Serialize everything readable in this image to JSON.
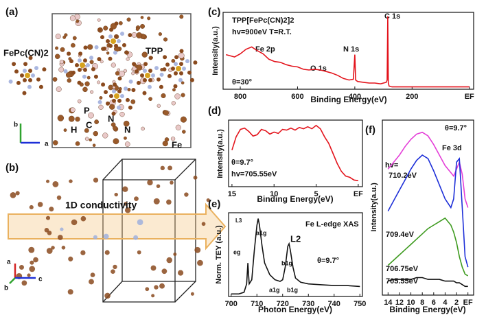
{
  "structures": {
    "a": {
      "label": "(a)",
      "texts": [
        "FePc(CN)2",
        "TPP",
        "P",
        "H",
        "C",
        "N",
        "N",
        "Fe",
        "b",
        "a"
      ]
    },
    "b": {
      "label": "(b)",
      "texts": [
        "1D conductivity",
        "a",
        "c",
        "b"
      ]
    }
  },
  "chart_data": [
    {
      "type": "line",
      "panel_label": "(c)",
      "title": "TPP[FePc(CN)2]2",
      "annotations": [
        "hv=900eV T=R.T.",
        "θ=30°",
        "Fe 2p",
        "O 1s",
        "N 1s",
        "C 1s"
      ],
      "x_label": "Binding Energy(eV)",
      "y_label": "Intensity(a.u.)",
      "color": "#e3141c",
      "x": [
        850,
        820,
        800,
        780,
        760,
        740,
        720,
        700,
        680,
        660,
        640,
        620,
        600,
        580,
        560,
        540,
        520,
        500,
        480,
        460,
        440,
        420,
        405,
        400,
        397,
        390,
        370,
        350,
        330,
        310,
        290,
        287,
        285,
        283,
        280,
        270,
        250,
        200,
        150,
        100,
        50,
        0
      ],
      "values": [
        4.5,
        4.2,
        4.6,
        5.2,
        5.5,
        5.0,
        4.6,
        3.9,
        3.6,
        3.5,
        3.2,
        3.0,
        2.9,
        2.6,
        2.5,
        2.6,
        2.5,
        2.3,
        2.1,
        1.8,
        1.4,
        1.2,
        1.3,
        4.5,
        1.2,
        1.0,
        0.9,
        0.8,
        0.8,
        0.7,
        0.9,
        1.2,
        9.5,
        0.8,
        0.4,
        0.3,
        0.3,
        0.3,
        0.3,
        0.3,
        0.3,
        0.3
      ],
      "xlim": [
        860,
        -15
      ],
      "ylim": [
        0,
        10
      ],
      "xticks": [
        800,
        600,
        400,
        200,
        {
          "value": 0,
          "label": "EF"
        }
      ]
    },
    {
      "type": "line",
      "panel_label": "(d)",
      "annotations": [
        "θ=9.7°",
        "hv=705.55eV"
      ],
      "x_label": "Binding Energy(eV)",
      "y_label": "Intensity(a.u.)",
      "color": "#e3141c",
      "x": [
        15,
        14.5,
        14,
        13.5,
        13,
        12.5,
        12,
        11.5,
        11,
        10.5,
        10,
        9.5,
        9,
        8.5,
        8,
        7.5,
        7,
        6.5,
        6,
        5.5,
        5,
        4.5,
        4,
        3.5,
        3,
        2.5,
        2,
        1.5,
        1,
        0.5,
        0
      ],
      "values": [
        5.5,
        7.5,
        8.6,
        8.8,
        8.3,
        7.6,
        7.8,
        8.6,
        8.4,
        7.9,
        8.2,
        8.0,
        8.6,
        8.5,
        8.8,
        8.5,
        8.9,
        8.7,
        9.0,
        8.7,
        9.2,
        8.7,
        7.5,
        6.5,
        5.0,
        3.5,
        2.3,
        1.6,
        1.4,
        1.0,
        0.9
      ],
      "xlim": [
        15.4,
        -0.5
      ],
      "ylim": [
        0,
        10
      ],
      "xticks": [
        15,
        10,
        5,
        {
          "value": 0,
          "label": "EF"
        }
      ]
    },
    {
      "type": "line",
      "panel_label": "(e)",
      "title": "Fe L-edge XAS",
      "annotations": [
        "θ=9.7°",
        "L3",
        "L2",
        "eg",
        "a1g",
        "b1g",
        "a1g",
        "b1g"
      ],
      "x_label": "Photon Energy(eV)",
      "y_label": "Norm. TEY (a.u.)",
      "color": "#111111",
      "x": [
        700,
        703,
        705,
        706,
        706.5,
        707,
        708,
        709,
        710,
        710.5,
        711,
        712,
        713,
        715,
        717,
        719,
        720,
        721,
        722,
        722.5,
        723,
        724,
        725,
        727,
        730,
        735,
        740,
        745,
        750
      ],
      "values": [
        0.3,
        0.3,
        0.5,
        1.5,
        4.0,
        1.5,
        2.0,
        5.5,
        8.5,
        9.3,
        8.5,
        6.0,
        4.0,
        2.6,
        2.0,
        1.8,
        2.0,
        3.5,
        6.0,
        6.3,
        5.5,
        3.5,
        2.2,
        1.7,
        1.5,
        1.4,
        1.3,
        1.3,
        1.2
      ],
      "xlim": [
        699,
        751
      ],
      "ylim": [
        0,
        10
      ],
      "xticks": [
        700,
        710,
        720,
        730,
        740,
        750
      ]
    },
    {
      "type": "line",
      "panel_label": "(f)",
      "annotations": [
        "θ=9.7°",
        "hv=",
        "Fe 3d"
      ],
      "x_label": "Binding Energy(eV)",
      "y_label": "Intensity(a.u.)",
      "x": [
        14,
        13,
        12,
        11,
        10,
        9,
        8,
        7,
        6,
        5,
        4,
        3,
        2.5,
        2,
        1.5,
        1,
        0.5,
        0
      ],
      "series": [
        {
          "name": "710.2eV",
          "color": "#e43fd8",
          "values": [
            7.2,
            7.6,
            8.0,
            8.5,
            8.9,
            9.2,
            9.3,
            9.1,
            8.6,
            8.0,
            7.4,
            7.0,
            6.8,
            7.2,
            7.6,
            6.9,
            5.5,
            5.0
          ]
        },
        {
          "name": "709.4eV",
          "color": "#1d2fd8",
          "values": [
            4.8,
            5.4,
            6.0,
            6.6,
            7.2,
            7.7,
            8.0,
            7.8,
            7.1,
            6.3,
            5.5,
            5.0,
            5.5,
            7.6,
            7.8,
            5.0,
            2.2,
            1.6
          ]
        },
        {
          "name": "706.75eV",
          "color": "#3d9a1e",
          "values": [
            1.7,
            2.0,
            2.3,
            2.6,
            2.9,
            3.2,
            3.5,
            3.8,
            4.0,
            4.2,
            4.4,
            4.0,
            3.6,
            3.0,
            2.2,
            1.6,
            1.2,
            1.1
          ]
        },
        {
          "name": "705.55eV",
          "color": "#111111",
          "values": [
            0.8,
            0.9,
            0.9,
            0.9,
            0.9,
            1.0,
            1.0,
            0.9,
            0.9,
            0.9,
            0.8,
            0.8,
            0.8,
            0.7,
            0.7,
            0.6,
            0.5,
            0.5
          ]
        }
      ],
      "xlim": [
        15,
        -1
      ],
      "ylim": [
        0,
        10
      ],
      "xticks": [
        14,
        12,
        10,
        8,
        6,
        4,
        2,
        {
          "value": 0,
          "label": "EF"
        }
      ]
    }
  ]
}
